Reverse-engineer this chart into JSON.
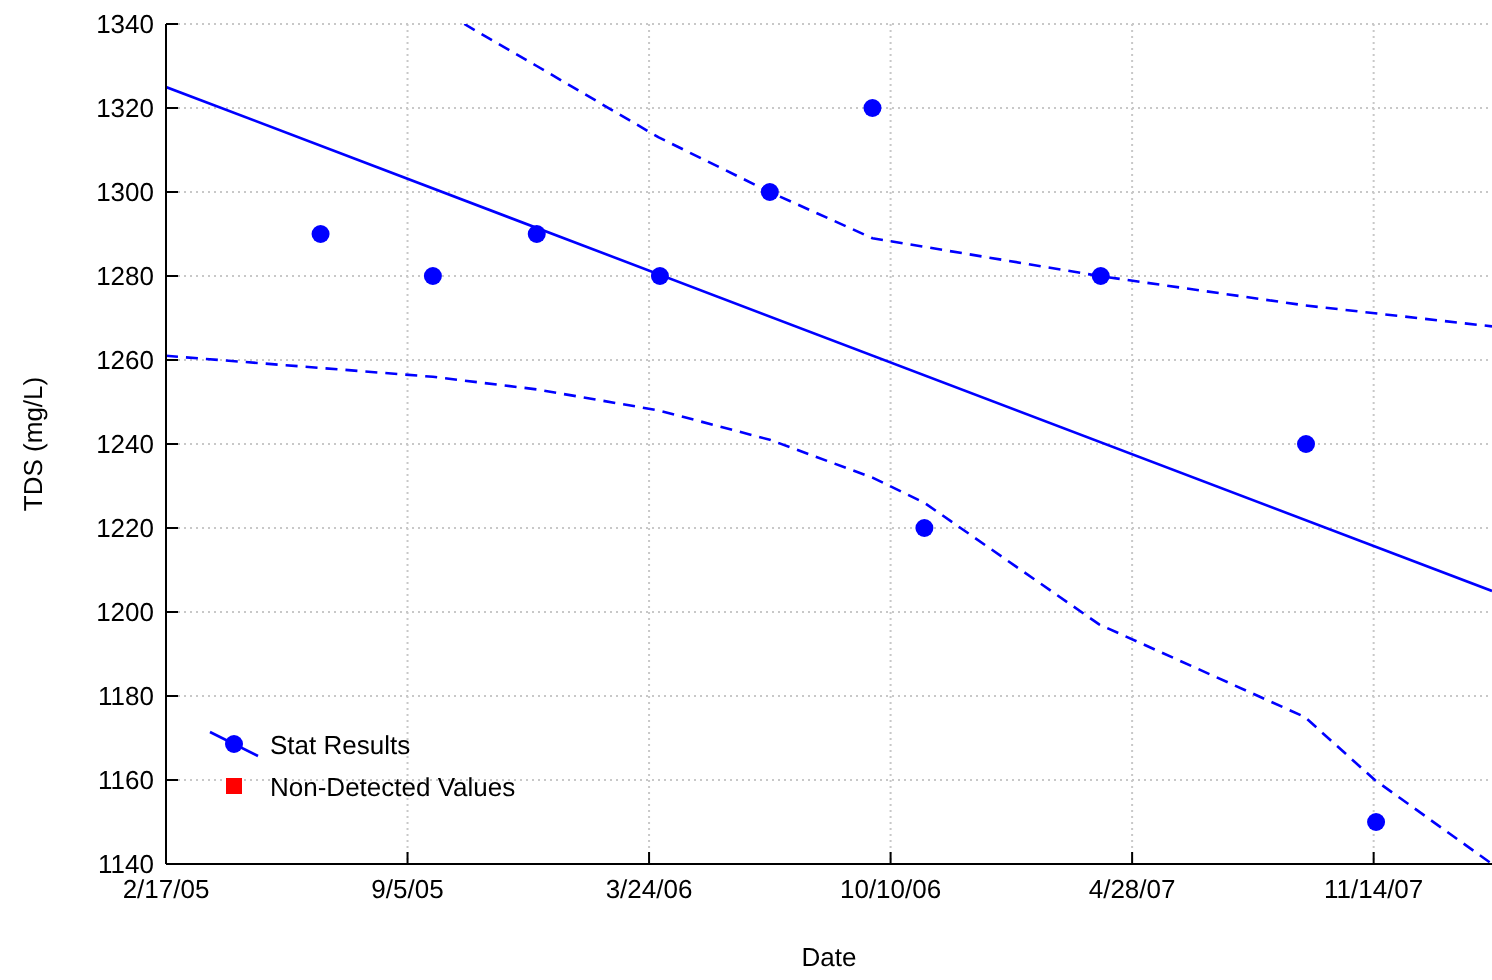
{
  "chart_data": {
    "type": "scatter",
    "xlabel": "Date",
    "ylabel": "TDS (mg/L)",
    "xlim": [
      "2005-02-17",
      "2008-02-20"
    ],
    "ylim": [
      1140,
      1340
    ],
    "xticks": [
      {
        "value": "2005-02-17",
        "label": "2/17/05"
      },
      {
        "value": "2005-09-05",
        "label": "9/5/05"
      },
      {
        "value": "2006-03-24",
        "label": "3/24/06"
      },
      {
        "value": "2006-10-10",
        "label": "10/10/06"
      },
      {
        "value": "2007-04-28",
        "label": "4/28/07"
      },
      {
        "value": "2007-11-14",
        "label": "11/14/07"
      }
    ],
    "yticks": [
      1140,
      1160,
      1180,
      1200,
      1220,
      1240,
      1260,
      1280,
      1300,
      1320,
      1340
    ],
    "grid": true,
    "legend": "bottom left",
    "series": [
      {
        "name": "Stat Results",
        "color": "#0000ff",
        "marker": "circle",
        "x": [
          "2005-06-25",
          "2005-09-26",
          "2005-12-21",
          "2006-04-02",
          "2006-07-02",
          "2006-09-25",
          "2006-11-07",
          "2007-04-02",
          "2007-09-19",
          "2007-11-16"
        ],
        "values": [
          1290,
          1280,
          1290,
          1280,
          1300,
          1320,
          1220,
          1280,
          1240,
          1150
        ]
      },
      {
        "name": "Non-Detected Values",
        "color": "#ff0000",
        "marker": "square"
      },
      {
        "type": "line",
        "color": "#0000ff",
        "line_style": "solid",
        "x": [
          "2005-02-17",
          "2008-02-20"
        ],
        "values": [
          1325,
          1205
        ]
      },
      {
        "type": "line",
        "color": "#0000ff",
        "line_style": "dashed",
        "x": [
          "2005-10-22",
          "2005-12-21",
          "2006-04-01",
          "2006-07-02",
          "2006-09-25",
          "2007-04-01",
          "2007-09-18",
          "2008-02-20"
        ],
        "values": [
          1340,
          1330,
          1313,
          1300,
          1289,
          1280,
          1273,
          1268
        ]
      },
      {
        "type": "line",
        "color": "#0000ff",
        "line_style": "dashed",
        "x": [
          "2005-02-17",
          "2005-09-26",
          "2005-12-21",
          "2006-04-01",
          "2006-07-02",
          "2006-09-25",
          "2006-11-07",
          "2007-04-01",
          "2007-09-18",
          "2007-11-15",
          "2008-02-20"
        ],
        "values": [
          1261,
          1256,
          1253,
          1248,
          1241,
          1232,
          1226,
          1197,
          1175,
          1160,
          1140
        ]
      }
    ]
  }
}
